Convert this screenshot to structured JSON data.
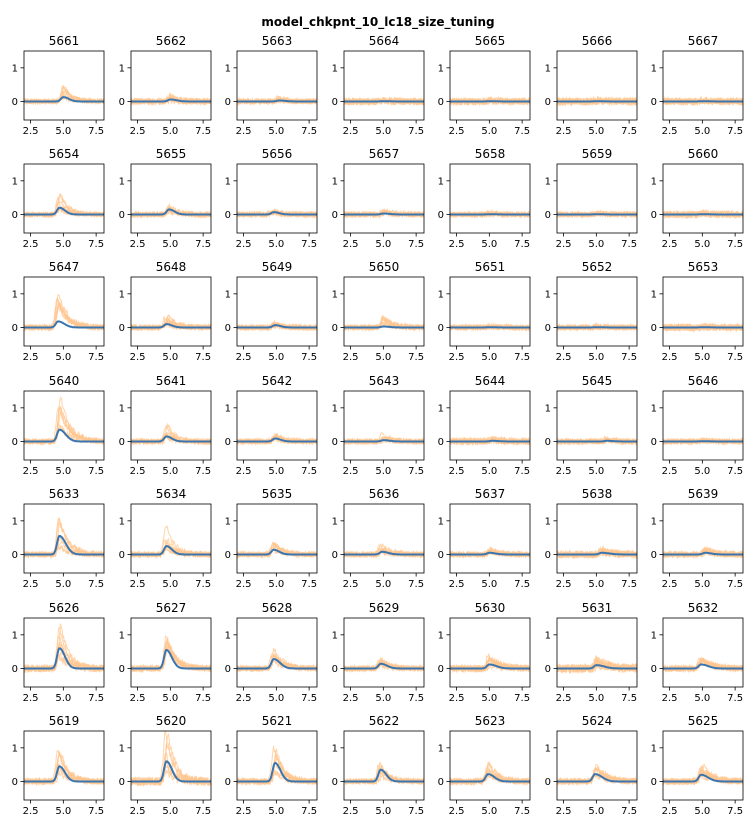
{
  "chart_data": {
    "type": "line",
    "title": "model_chkpnt_10_lc18_size_tuning",
    "grid": false,
    "xlim": [
      2.0,
      8.1
    ],
    "ylim": [
      -0.55,
      1.5
    ],
    "xticks": [
      "2.5",
      "5.0",
      "7.5"
    ],
    "yticks": [
      "0",
      "1"
    ],
    "xtick_values": [
      2.5,
      5.0,
      7.5
    ],
    "ytick_values": [
      0,
      1
    ],
    "colors": {
      "trials": "#ffbe86",
      "mean": "#3b75af"
    },
    "series_kind": "gaussian_pulse_per_panel",
    "panels": [
      {
        "id": "5661",
        "peak": 0.13,
        "center": 5.0,
        "width": 0.35,
        "trial_peak": 0.45,
        "noise": 0.07
      },
      {
        "id": "5662",
        "peak": 0.06,
        "center": 5.0,
        "width": 0.4,
        "trial_peak": 0.15,
        "noise": 0.09
      },
      {
        "id": "5663",
        "peak": 0.03,
        "center": 5.2,
        "width": 0.4,
        "trial_peak": 0.1,
        "noise": 0.08
      },
      {
        "id": "5664",
        "peak": 0.01,
        "center": 5.0,
        "width": 0.4,
        "trial_peak": 0.05,
        "noise": 0.1
      },
      {
        "id": "5665",
        "peak": 0.01,
        "center": 5.0,
        "width": 0.4,
        "trial_peak": 0.05,
        "noise": 0.1
      },
      {
        "id": "5666",
        "peak": 0.01,
        "center": 5.0,
        "width": 0.4,
        "trial_peak": 0.05,
        "noise": 0.11
      },
      {
        "id": "5667",
        "peak": 0.01,
        "center": 5.0,
        "width": 0.4,
        "trial_peak": 0.05,
        "noise": 0.1
      },
      {
        "id": "5654",
        "peak": 0.2,
        "center": 4.7,
        "width": 0.35,
        "trial_peak": 0.55,
        "noise": 0.07
      },
      {
        "id": "5655",
        "peak": 0.15,
        "center": 4.9,
        "width": 0.35,
        "trial_peak": 0.25,
        "noise": 0.08
      },
      {
        "id": "5656",
        "peak": 0.07,
        "center": 4.8,
        "width": 0.35,
        "trial_peak": 0.15,
        "noise": 0.08
      },
      {
        "id": "5657",
        "peak": 0.03,
        "center": 5.0,
        "width": 0.4,
        "trial_peak": 0.1,
        "noise": 0.08
      },
      {
        "id": "5658",
        "peak": 0.01,
        "center": 5.0,
        "width": 0.4,
        "trial_peak": 0.05,
        "noise": 0.08
      },
      {
        "id": "5659",
        "peak": 0.01,
        "center": 5.0,
        "width": 0.4,
        "trial_peak": 0.05,
        "noise": 0.08
      },
      {
        "id": "5660",
        "peak": 0.01,
        "center": 5.0,
        "width": 0.4,
        "trial_peak": 0.05,
        "noise": 0.1
      },
      {
        "id": "5647",
        "peak": 0.18,
        "center": 4.6,
        "width": 0.4,
        "trial_peak": 0.95,
        "noise": 0.08
      },
      {
        "id": "5648",
        "peak": 0.1,
        "center": 4.7,
        "width": 0.35,
        "trial_peak": 0.4,
        "noise": 0.08
      },
      {
        "id": "5649",
        "peak": 0.07,
        "center": 4.9,
        "width": 0.35,
        "trial_peak": 0.15,
        "noise": 0.08
      },
      {
        "id": "5650",
        "peak": 0.03,
        "center": 5.0,
        "width": 0.4,
        "trial_peak": 0.3,
        "noise": 0.08
      },
      {
        "id": "5651",
        "peak": 0.01,
        "center": 5.0,
        "width": 0.4,
        "trial_peak": 0.05,
        "noise": 0.08
      },
      {
        "id": "5652",
        "peak": 0.01,
        "center": 5.0,
        "width": 0.4,
        "trial_peak": 0.05,
        "noise": 0.08
      },
      {
        "id": "5653",
        "peak": 0.01,
        "center": 5.0,
        "width": 0.4,
        "trial_peak": 0.05,
        "noise": 0.1
      },
      {
        "id": "5640",
        "peak": 0.35,
        "center": 4.7,
        "width": 0.4,
        "trial_peak": 1.25,
        "noise": 0.08
      },
      {
        "id": "5641",
        "peak": 0.15,
        "center": 4.7,
        "width": 0.35,
        "trial_peak": 0.5,
        "noise": 0.08
      },
      {
        "id": "5642",
        "peak": 0.09,
        "center": 4.9,
        "width": 0.35,
        "trial_peak": 0.2,
        "noise": 0.08
      },
      {
        "id": "5643",
        "peak": 0.04,
        "center": 5.0,
        "width": 0.4,
        "trial_peak": 0.2,
        "noise": 0.08
      },
      {
        "id": "5644",
        "peak": 0.02,
        "center": 5.2,
        "width": 0.4,
        "trial_peak": 0.08,
        "noise": 0.1
      },
      {
        "id": "5645",
        "peak": 0.02,
        "center": 5.8,
        "width": 0.4,
        "trial_peak": 0.08,
        "noise": 0.08
      },
      {
        "id": "5646",
        "peak": 0.01,
        "center": 5.0,
        "width": 0.4,
        "trial_peak": 0.05,
        "noise": 0.08
      },
      {
        "id": "5633",
        "peak": 0.55,
        "center": 4.7,
        "width": 0.4,
        "trial_peak": 1.05,
        "noise": 0.08
      },
      {
        "id": "5634",
        "peak": 0.25,
        "center": 4.7,
        "width": 0.35,
        "trial_peak": 0.85,
        "noise": 0.08
      },
      {
        "id": "5635",
        "peak": 0.14,
        "center": 4.8,
        "width": 0.35,
        "trial_peak": 0.35,
        "noise": 0.08
      },
      {
        "id": "5636",
        "peak": 0.08,
        "center": 4.9,
        "width": 0.4,
        "trial_peak": 0.3,
        "noise": 0.08
      },
      {
        "id": "5637",
        "peak": 0.05,
        "center": 5.0,
        "width": 0.4,
        "trial_peak": 0.15,
        "noise": 0.08
      },
      {
        "id": "5638",
        "peak": 0.05,
        "center": 5.4,
        "width": 0.5,
        "trial_peak": 0.2,
        "noise": 0.1
      },
      {
        "id": "5639",
        "peak": 0.05,
        "center": 5.2,
        "width": 0.4,
        "trial_peak": 0.2,
        "noise": 0.09
      },
      {
        "id": "5626",
        "peak": 0.6,
        "center": 4.7,
        "width": 0.35,
        "trial_peak": 1.4,
        "noise": 0.1
      },
      {
        "id": "5627",
        "peak": 0.55,
        "center": 4.7,
        "width": 0.35,
        "trial_peak": 1.0,
        "noise": 0.09
      },
      {
        "id": "5628",
        "peak": 0.28,
        "center": 4.8,
        "width": 0.4,
        "trial_peak": 0.55,
        "noise": 0.08
      },
      {
        "id": "5629",
        "peak": 0.14,
        "center": 4.8,
        "width": 0.4,
        "trial_peak": 0.35,
        "noise": 0.08
      },
      {
        "id": "5630",
        "peak": 0.12,
        "center": 5.0,
        "width": 0.45,
        "trial_peak": 0.35,
        "noise": 0.1
      },
      {
        "id": "5631",
        "peak": 0.1,
        "center": 5.0,
        "width": 0.5,
        "trial_peak": 0.3,
        "noise": 0.12
      },
      {
        "id": "5632",
        "peak": 0.12,
        "center": 4.9,
        "width": 0.45,
        "trial_peak": 0.3,
        "noise": 0.09
      },
      {
        "id": "5619",
        "peak": 0.45,
        "center": 4.7,
        "width": 0.35,
        "trial_peak": 0.95,
        "noise": 0.09
      },
      {
        "id": "5620",
        "peak": 0.6,
        "center": 4.7,
        "width": 0.35,
        "trial_peak": 1.4,
        "noise": 0.12
      },
      {
        "id": "5621",
        "peak": 0.55,
        "center": 4.9,
        "width": 0.35,
        "trial_peak": 1.0,
        "noise": 0.09
      },
      {
        "id": "5622",
        "peak": 0.35,
        "center": 4.8,
        "width": 0.35,
        "trial_peak": 0.6,
        "noise": 0.08
      },
      {
        "id": "5623",
        "peak": 0.22,
        "center": 4.9,
        "width": 0.4,
        "trial_peak": 0.5,
        "noise": 0.09
      },
      {
        "id": "5624",
        "peak": 0.22,
        "center": 4.9,
        "width": 0.45,
        "trial_peak": 0.55,
        "noise": 0.09
      },
      {
        "id": "5625",
        "peak": 0.2,
        "center": 4.9,
        "width": 0.45,
        "trial_peak": 0.45,
        "noise": 0.09
      }
    ]
  }
}
